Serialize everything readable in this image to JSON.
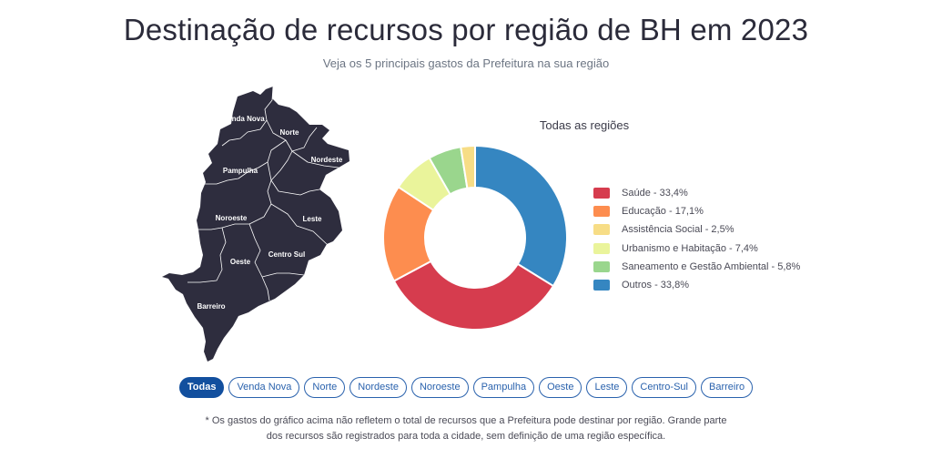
{
  "header": {
    "title": "Destinação de recursos por região de BH em 2023",
    "subtitle": "Veja os 5 principais gastos da Prefeitura na sua região"
  },
  "map": {
    "region_labels": [
      "Venda Nova",
      "Norte",
      "Nordeste",
      "Pampulha",
      "Noroeste",
      "Leste",
      "Oeste",
      "Centro Sul",
      "Barreiro"
    ],
    "fill_color": "#2e2d3e",
    "border_color": "#ffffff"
  },
  "chart_data": {
    "type": "pie",
    "donut": true,
    "title": "Todas as regiões",
    "series": [
      {
        "name": "Saúde",
        "label": "Saúde - 33,4%",
        "value": 33.4,
        "color": "#d63c4e"
      },
      {
        "name": "Educação",
        "label": "Educação - 17,1%",
        "value": 17.1,
        "color": "#fd8d4f"
      },
      {
        "name": "Assistência Social",
        "label": "Assistência Social - 2,5%",
        "value": 2.5,
        "color": "#f7dd86"
      },
      {
        "name": "Urbanismo e Habitação",
        "label": "Urbanismo e Habitação - 7,4%",
        "value": 7.4,
        "color": "#eaf49b"
      },
      {
        "name": "Saneamento e Gestão Ambiental",
        "label": "Saneamento e Gestão Ambiental - 5,8%",
        "value": 5.8,
        "color": "#9ad68d"
      },
      {
        "name": "Outros",
        "label": "Outros - 33,8%",
        "value": 33.8,
        "color": "#3586c1"
      }
    ],
    "draw_order": [
      "Outros",
      "Saúde",
      "Educação",
      "Urbanismo e Habitação",
      "Saneamento e Gestão Ambiental",
      "Assistência Social"
    ],
    "legend_position": "right"
  },
  "filters": {
    "selected": "Todas",
    "options": [
      "Todas",
      "Venda Nova",
      "Norte",
      "Nordeste",
      "Noroeste",
      "Pampulha",
      "Oeste",
      "Leste",
      "Centro-Sul",
      "Barreiro"
    ]
  },
  "footnote": {
    "line1": "* Os gastos do gráfico acima não refletem o total de recursos que a Prefeitura pode destinar por região. Grande parte",
    "line2": "dos recursos são registrados para toda a cidade, sem definição de uma região específica."
  }
}
